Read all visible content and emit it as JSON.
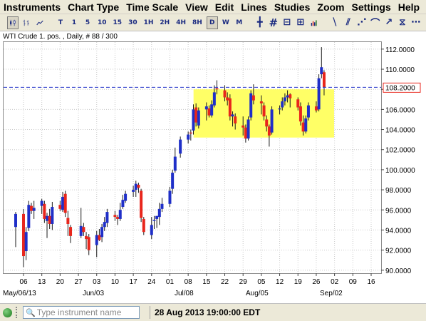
{
  "menu": [
    "Instruments",
    "Chart Type",
    "Time Scale",
    "View",
    "Edit",
    "Lines",
    "Studies",
    "Zoom",
    "Settings",
    "Help"
  ],
  "toolbar": {
    "timeframes": [
      "T",
      "1",
      "5",
      "10",
      "15",
      "30",
      "1H",
      "2H",
      "4H",
      "8H",
      "D",
      "W",
      "M"
    ],
    "active_timeframe": "D"
  },
  "chart_caption": "WTI Crude 1. pos. , Daily, # 88 / 300",
  "status": {
    "search_placeholder": "Type instrument name",
    "datetime": "28 Aug 2013 19:00:00 EDT"
  },
  "chart_data": {
    "type": "candlestick",
    "instrument": "WTI Crude 1. pos.",
    "interval": "Daily",
    "ylim": [
      89.7,
      112.7
    ],
    "y_ticks": [
      "112.0000",
      "110.0000",
      "108.0000",
      "106.0000",
      "104.0000",
      "102.0000",
      "100.0000",
      "98.0000",
      "96.0000",
      "94.0000",
      "92.0000",
      "90.0000"
    ],
    "y_tick_values": [
      112,
      110,
      108,
      106,
      104,
      102,
      100,
      98,
      96,
      94,
      92,
      90
    ],
    "x_day_labels": [
      "06",
      "13",
      "20",
      "27",
      "03",
      "10",
      "17",
      "24",
      "01",
      "08",
      "15",
      "22",
      "29",
      "05",
      "12",
      "19",
      "26",
      "02",
      "09",
      "16"
    ],
    "x_month_labels": [
      {
        "label": "May/06/13",
        "tick": "06"
      },
      {
        "label": "Jun/03",
        "tick": "03"
      },
      {
        "label": "Jul/08",
        "tick": "08"
      },
      {
        "label": "Aug/05",
        "tick": "05"
      },
      {
        "label": "Sep/02",
        "tick": "02"
      }
    ],
    "horizontal_line": {
      "value": 108.2,
      "label": "108.2000",
      "color": "#1f2fc8"
    },
    "highlight_box": {
      "y_low": 103.2,
      "y_high": 108.0,
      "from_date": "2013-07-11",
      "to_date": "2013-08-29",
      "color": "#ffff66"
    },
    "colors": {
      "up": "#1f2fc8",
      "down": "#e8261c",
      "wick": "#1a1a1a",
      "grid": "#c9c9c9"
    },
    "candles": [
      {
        "date": "2013-05-03",
        "o": 94.3,
        "h": 95.8,
        "l": 92.3,
        "c": 95.6
      },
      {
        "date": "2013-05-06",
        "o": 95.6,
        "h": 96.1,
        "l": 90.3,
        "c": 91.4
      },
      {
        "date": "2013-05-07",
        "o": 91.9,
        "h": 94.3,
        "l": 91.0,
        "c": 93.8
      },
      {
        "date": "2013-05-08",
        "o": 94.2,
        "h": 96.9,
        "l": 93.9,
        "c": 96.5
      },
      {
        "date": "2013-05-09",
        "o": 96.4,
        "h": 96.7,
        "l": 95.6,
        "c": 95.9
      },
      {
        "date": "2013-05-10",
        "o": 95.9,
        "h": 96.9,
        "l": 95.1,
        "c": 96.2
      },
      {
        "date": "2013-05-13",
        "o": 96.4,
        "h": 97.1,
        "l": 95.6,
        "c": 96.9
      },
      {
        "date": "2013-05-14",
        "o": 96.6,
        "h": 96.9,
        "l": 94.7,
        "c": 95.1
      },
      {
        "date": "2013-05-15",
        "o": 94.9,
        "h": 95.7,
        "l": 93.2,
        "c": 95.4
      },
      {
        "date": "2013-05-16",
        "o": 95.4,
        "h": 96.1,
        "l": 94.1,
        "c": 94.6
      },
      {
        "date": "2013-05-17",
        "o": 94.6,
        "h": 96.8,
        "l": 94.0,
        "c": 96.3
      },
      {
        "date": "2013-05-20",
        "o": 96.5,
        "h": 96.9,
        "l": 95.9,
        "c": 96.1
      },
      {
        "date": "2013-05-21",
        "o": 96.0,
        "h": 97.8,
        "l": 95.8,
        "c": 97.3
      },
      {
        "date": "2013-05-22",
        "o": 97.6,
        "h": 97.9,
        "l": 95.3,
        "c": 95.7
      },
      {
        "date": "2013-05-23",
        "o": 95.2,
        "h": 95.9,
        "l": 93.4,
        "c": 94.6
      },
      {
        "date": "2013-05-24",
        "o": 94.3,
        "h": 94.5,
        "l": 92.7,
        "c": 93.4
      },
      {
        "date": "2013-05-28",
        "o": 93.4,
        "h": 96.2,
        "l": 93.2,
        "c": 94.4
      },
      {
        "date": "2013-05-29",
        "o": 94.3,
        "h": 94.7,
        "l": 93.4,
        "c": 93.8
      },
      {
        "date": "2013-05-30",
        "o": 93.4,
        "h": 93.8,
        "l": 92.1,
        "c": 93.1
      },
      {
        "date": "2013-05-31",
        "o": 93.3,
        "h": 93.6,
        "l": 91.5,
        "c": 92.0
      },
      {
        "date": "2013-06-03",
        "o": 92.5,
        "h": 93.9,
        "l": 91.3,
        "c": 93.5
      },
      {
        "date": "2013-06-04",
        "o": 93.5,
        "h": 94.1,
        "l": 92.9,
        "c": 93.0
      },
      {
        "date": "2013-06-05",
        "o": 93.3,
        "h": 94.6,
        "l": 92.8,
        "c": 94.3
      },
      {
        "date": "2013-06-06",
        "o": 94.3,
        "h": 95.3,
        "l": 93.9,
        "c": 94.8
      },
      {
        "date": "2013-06-07",
        "o": 94.7,
        "h": 96.1,
        "l": 94.3,
        "c": 95.8
      },
      {
        "date": "2013-06-10",
        "o": 95.5,
        "h": 95.9,
        "l": 94.9,
        "c": 95.3
      },
      {
        "date": "2013-06-11",
        "o": 95.3,
        "h": 95.5,
        "l": 94.5,
        "c": 95.1
      },
      {
        "date": "2013-06-12",
        "o": 95.1,
        "h": 96.7,
        "l": 94.9,
        "c": 96.0
      },
      {
        "date": "2013-06-13",
        "o": 96.3,
        "h": 97.5,
        "l": 96.1,
        "c": 97.0
      },
      {
        "date": "2013-06-14",
        "o": 96.9,
        "h": 97.9,
        "l": 96.7,
        "c": 97.6
      },
      {
        "date": "2013-06-17",
        "o": 97.8,
        "h": 98.4,
        "l": 97.3,
        "c": 98.0
      },
      {
        "date": "2013-06-18",
        "o": 98.0,
        "h": 98.9,
        "l": 97.3,
        "c": 98.6
      },
      {
        "date": "2013-06-19",
        "o": 98.5,
        "h": 98.7,
        "l": 97.7,
        "c": 98.2
      },
      {
        "date": "2013-06-20",
        "o": 97.9,
        "h": 98.1,
        "l": 94.8,
        "c": 95.2
      },
      {
        "date": "2013-06-21",
        "o": 95.1,
        "h": 95.3,
        "l": 93.5,
        "c": 93.8
      },
      {
        "date": "2013-06-24",
        "o": 93.5,
        "h": 95.3,
        "l": 93.1,
        "c": 94.5
      },
      {
        "date": "2013-06-25",
        "o": 94.9,
        "h": 95.4,
        "l": 94.1,
        "c": 95.0
      },
      {
        "date": "2013-06-26",
        "o": 95.1,
        "h": 95.4,
        "l": 94.2,
        "c": 95.4
      },
      {
        "date": "2013-06-27",
        "o": 95.3,
        "h": 96.7,
        "l": 94.5,
        "c": 96.1
      },
      {
        "date": "2013-06-28",
        "o": 96.1,
        "h": 97.2,
        "l": 95.8,
        "c": 96.6
      },
      {
        "date": "2013-07-01",
        "o": 96.6,
        "h": 98.3,
        "l": 96.3,
        "c": 97.9
      },
      {
        "date": "2013-07-02",
        "o": 98.1,
        "h": 100.0,
        "l": 97.6,
        "c": 99.7
      },
      {
        "date": "2013-07-03",
        "o": 99.9,
        "h": 102.2,
        "l": 99.7,
        "c": 101.3
      },
      {
        "date": "2013-07-05",
        "o": 101.6,
        "h": 103.3,
        "l": 101.2,
        "c": 103.0
      },
      {
        "date": "2013-07-08",
        "o": 103.0,
        "h": 103.8,
        "l": 102.6,
        "c": 103.5
      },
      {
        "date": "2013-07-09",
        "o": 103.7,
        "h": 104.0,
        "l": 102.9,
        "c": 103.6
      },
      {
        "date": "2013-07-10",
        "o": 103.9,
        "h": 106.5,
        "l": 103.5,
        "c": 106.0
      },
      {
        "date": "2013-07-11",
        "o": 106.2,
        "h": 106.6,
        "l": 104.3,
        "c": 104.7
      },
      {
        "date": "2013-07-12",
        "o": 104.4,
        "h": 106.2,
        "l": 104.1,
        "c": 105.9
      },
      {
        "date": "2013-07-15",
        "o": 106.0,
        "h": 106.7,
        "l": 104.9,
        "c": 106.3
      },
      {
        "date": "2013-07-16",
        "o": 106.1,
        "h": 106.4,
        "l": 105.2,
        "c": 105.4
      },
      {
        "date": "2013-07-17",
        "o": 105.4,
        "h": 106.9,
        "l": 105.2,
        "c": 106.5
      },
      {
        "date": "2013-07-18",
        "o": 106.4,
        "h": 108.4,
        "l": 106.2,
        "c": 107.7
      },
      {
        "date": "2013-07-19",
        "o": 108.1,
        "h": 108.9,
        "l": 107.5,
        "c": 108.0
      },
      {
        "date": "2013-07-22",
        "o": 107.9,
        "h": 108.4,
        "l": 106.8,
        "c": 107.2
      },
      {
        "date": "2013-07-23",
        "o": 107.2,
        "h": 107.7,
        "l": 106.4,
        "c": 106.9
      },
      {
        "date": "2013-07-24",
        "o": 107.1,
        "h": 107.5,
        "l": 104.9,
        "c": 105.3
      },
      {
        "date": "2013-07-25",
        "o": 105.3,
        "h": 105.8,
        "l": 104.3,
        "c": 105.5
      },
      {
        "date": "2013-07-26",
        "o": 105.3,
        "h": 105.6,
        "l": 104.0,
        "c": 104.6
      },
      {
        "date": "2013-07-29",
        "o": 104.4,
        "h": 105.3,
        "l": 103.4,
        "c": 104.2
      },
      {
        "date": "2013-07-30",
        "o": 104.2,
        "h": 104.5,
        "l": 102.7,
        "c": 103.1
      },
      {
        "date": "2013-07-31",
        "o": 103.1,
        "h": 105.3,
        "l": 102.9,
        "c": 105.0
      },
      {
        "date": "2013-08-01",
        "o": 105.2,
        "h": 107.9,
        "l": 104.9,
        "c": 107.6
      },
      {
        "date": "2013-08-02",
        "o": 107.4,
        "h": 108.5,
        "l": 106.5,
        "c": 106.9
      },
      {
        "date": "2013-08-05",
        "o": 106.8,
        "h": 107.4,
        "l": 105.5,
        "c": 106.6
      },
      {
        "date": "2013-08-06",
        "o": 106.4,
        "h": 106.7,
        "l": 104.9,
        "c": 105.3
      },
      {
        "date": "2013-08-07",
        "o": 105.0,
        "h": 105.4,
        "l": 103.8,
        "c": 104.3
      },
      {
        "date": "2013-08-08",
        "o": 104.3,
        "h": 104.5,
        "l": 102.3,
        "c": 103.4
      },
      {
        "date": "2013-08-09",
        "o": 103.7,
        "h": 106.3,
        "l": 103.5,
        "c": 106.0
      },
      {
        "date": "2013-08-12",
        "o": 106.0,
        "h": 106.4,
        "l": 105.5,
        "c": 106.1
      },
      {
        "date": "2013-08-13",
        "o": 106.2,
        "h": 107.2,
        "l": 105.9,
        "c": 106.8
      },
      {
        "date": "2013-08-14",
        "o": 106.8,
        "h": 107.6,
        "l": 106.4,
        "c": 107.2
      },
      {
        "date": "2013-08-15",
        "o": 107.2,
        "h": 107.9,
        "l": 106.7,
        "c": 107.4
      },
      {
        "date": "2013-08-16",
        "o": 107.5,
        "h": 107.6,
        "l": 106.2,
        "c": 107.1
      },
      {
        "date": "2013-08-19",
        "o": 107.0,
        "h": 107.2,
        "l": 105.9,
        "c": 106.2
      },
      {
        "date": "2013-08-20",
        "o": 106.3,
        "h": 106.7,
        "l": 104.4,
        "c": 104.8
      },
      {
        "date": "2013-08-21",
        "o": 104.7,
        "h": 105.4,
        "l": 103.4,
        "c": 103.8
      },
      {
        "date": "2013-08-22",
        "o": 103.8,
        "h": 105.4,
        "l": 103.6,
        "c": 105.1
      },
      {
        "date": "2013-08-23",
        "o": 105.2,
        "h": 106.7,
        "l": 104.9,
        "c": 106.4
      },
      {
        "date": "2013-08-26",
        "o": 106.3,
        "h": 106.8,
        "l": 105.7,
        "c": 105.9
      },
      {
        "date": "2013-08-27",
        "o": 106.0,
        "h": 109.5,
        "l": 105.8,
        "c": 109.1
      },
      {
        "date": "2013-08-28",
        "o": 109.5,
        "h": 112.2,
        "l": 109.1,
        "c": 110.2
      },
      {
        "date": "2013-08-29",
        "o": 109.7,
        "h": 109.9,
        "l": 107.4,
        "c": 108.2
      }
    ]
  }
}
